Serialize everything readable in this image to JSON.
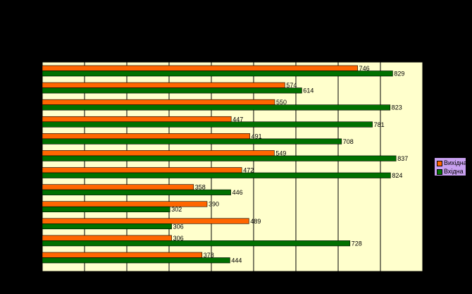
{
  "chart_data": {
    "type": "bar",
    "orientation": "horizontal",
    "title": "",
    "xlabel": "",
    "ylabel": "",
    "xlim": [
      0,
      900
    ],
    "gridlines_every": 100,
    "grid": true,
    "legend_position": "right",
    "plot_background": "#ffffcc",
    "page_background": "#000000",
    "series": [
      {
        "name": "Вихідна",
        "color": "#ff6600",
        "values": [
          746,
          574,
          550,
          447,
          491,
          549,
          472,
          358,
          390,
          489,
          306,
          378
        ]
      },
      {
        "name": "Вхідна",
        "color": "#007000",
        "values": [
          829,
          614,
          823,
          781,
          708,
          837,
          824,
          446,
          302,
          306,
          728,
          444
        ]
      }
    ]
  },
  "legend": {
    "items": [
      {
        "label": "Вихідна",
        "color": "#ff6600"
      },
      {
        "label": "Вхідна",
        "color": "#007000"
      }
    ]
  }
}
